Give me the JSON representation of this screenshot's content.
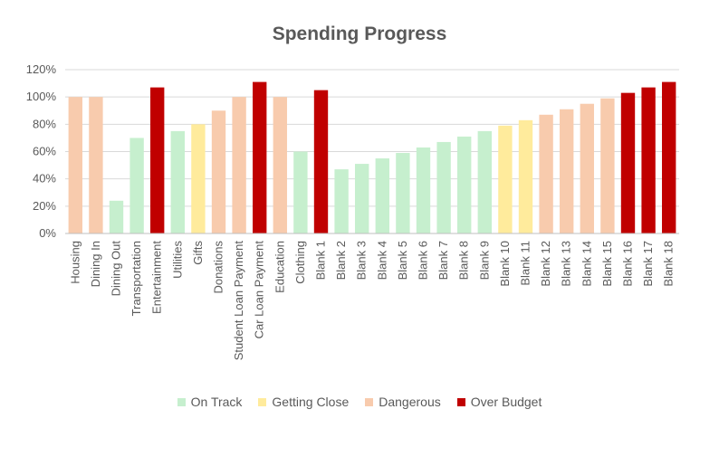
{
  "chart_data": {
    "type": "bar",
    "title": "Spending Progress",
    "xlabel": "",
    "ylabel": "",
    "ylim": [
      0,
      120
    ],
    "yticks": [
      "0%",
      "20%",
      "40%",
      "60%",
      "80%",
      "100%",
      "120%"
    ],
    "grid": true,
    "legend_position": "bottom",
    "status_colors": {
      "on_track": "#c6efce",
      "getting_close": "#ffeb9c",
      "dangerous": "#f8cbad",
      "over_budget": "#c00000"
    },
    "legend": [
      {
        "key": "on_track",
        "label": "On Track"
      },
      {
        "key": "getting_close",
        "label": "Getting Close"
      },
      {
        "key": "dangerous",
        "label": "Dangerous"
      },
      {
        "key": "over_budget",
        "label": "Over Budget"
      }
    ],
    "categories": [
      "Housing",
      "Dining In",
      "Dining Out",
      "Transportation",
      "Entertainment",
      "Utilities",
      "Gifts",
      "Donations",
      "Student Loan Payment",
      "Car Loan Payment",
      "Education",
      "Clothing",
      "Blank 1",
      "Blank 2",
      "Blank 3",
      "Blank 4",
      "Blank 5",
      "Blank 6",
      "Blank 7",
      "Blank 8",
      "Blank 9",
      "Blank 10",
      "Blank 11",
      "Blank 12",
      "Blank 13",
      "Blank 14",
      "Blank 15",
      "Blank 16",
      "Blank 17",
      "Blank 18"
    ],
    "values": [
      100,
      100,
      24,
      70,
      107,
      75,
      80,
      90,
      100,
      111,
      100,
      60,
      105,
      47,
      51,
      55,
      59,
      63,
      67,
      71,
      75,
      79,
      83,
      87,
      91,
      95,
      99,
      103,
      107,
      111
    ],
    "status": [
      "dangerous",
      "dangerous",
      "on_track",
      "on_track",
      "over_budget",
      "on_track",
      "getting_close",
      "dangerous",
      "dangerous",
      "over_budget",
      "dangerous",
      "on_track",
      "over_budget",
      "on_track",
      "on_track",
      "on_track",
      "on_track",
      "on_track",
      "on_track",
      "on_track",
      "on_track",
      "getting_close",
      "getting_close",
      "dangerous",
      "dangerous",
      "dangerous",
      "dangerous",
      "over_budget",
      "over_budget",
      "over_budget"
    ]
  }
}
